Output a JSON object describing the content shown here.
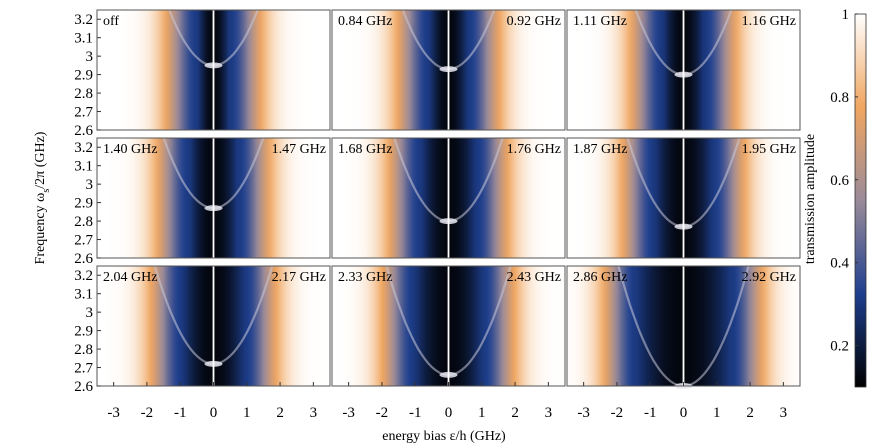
{
  "chart_data": {
    "type": "heatmap",
    "layout": "3x3 panel grid with shared axes",
    "xlabel": "energy bias ε/h (GHz)",
    "ylabel": "Frequency ω",
    "ylabel_sub": "s",
    "ylabel_tail": "/2π (GHz)",
    "xlim": [
      -3.5,
      3.5
    ],
    "ylim": [
      2.6,
      3.25
    ],
    "xticks": [
      -3,
      -2,
      -1,
      0,
      1,
      2,
      3
    ],
    "xtick_labels": [
      "-3",
      "-2",
      "-1",
      "0",
      "1",
      "2",
      "3"
    ],
    "yticks": [
      2.6,
      2.7,
      2.8,
      2.9,
      3.0,
      3.1,
      3.2
    ],
    "ytick_labels": [
      "2.6",
      "2.7",
      "2.8",
      "2.9",
      "3",
      "3.1",
      "3.2"
    ],
    "colorbar": {
      "label": "transmission amplitude",
      "range": [
        0.1,
        1.0
      ],
      "ticks": [
        0.2,
        0.4,
        0.6,
        0.8,
        1.0
      ],
      "tick_labels": [
        "0.2",
        "0.4",
        "0.6",
        "0.8",
        "1"
      ],
      "colors": [
        "#000000",
        "#1e3f8e",
        "#9a8a99",
        "#f0a660",
        "#ffffff"
      ]
    },
    "panels": [
      {
        "left_label": "off",
        "right_label": "",
        "dip_width": 0.45,
        "anticross_freq": 2.95
      },
      {
        "left_label": "0.84 GHz",
        "right_label": "0.92 GHz",
        "dip_width": 0.55,
        "anticross_freq": 2.93
      },
      {
        "left_label": "1.11 GHz",
        "right_label": "1.16 GHz",
        "dip_width": 0.6,
        "anticross_freq": 2.9
      },
      {
        "left_label": "1.40 GHz",
        "right_label": "1.47 GHz",
        "dip_width": 0.7,
        "anticross_freq": 2.87
      },
      {
        "left_label": "1.68 GHz",
        "right_label": "1.76 GHz",
        "dip_width": 0.8,
        "anticross_freq": 2.8
      },
      {
        "left_label": "1.87 GHz",
        "right_label": "1.95 GHz",
        "dip_width": 0.85,
        "anticross_freq": 2.77
      },
      {
        "left_label": "2.04 GHz",
        "right_label": "2.17 GHz",
        "dip_width": 0.9,
        "anticross_freq": 2.72
      },
      {
        "left_label": "2.33 GHz",
        "right_label": "2.43 GHz",
        "dip_width": 1.0,
        "anticross_freq": 2.66
      },
      {
        "left_label": "2.86 GHz",
        "right_label": "2.92 GHz",
        "dip_width": 1.4,
        "anticross_freq": 2.6
      }
    ]
  }
}
